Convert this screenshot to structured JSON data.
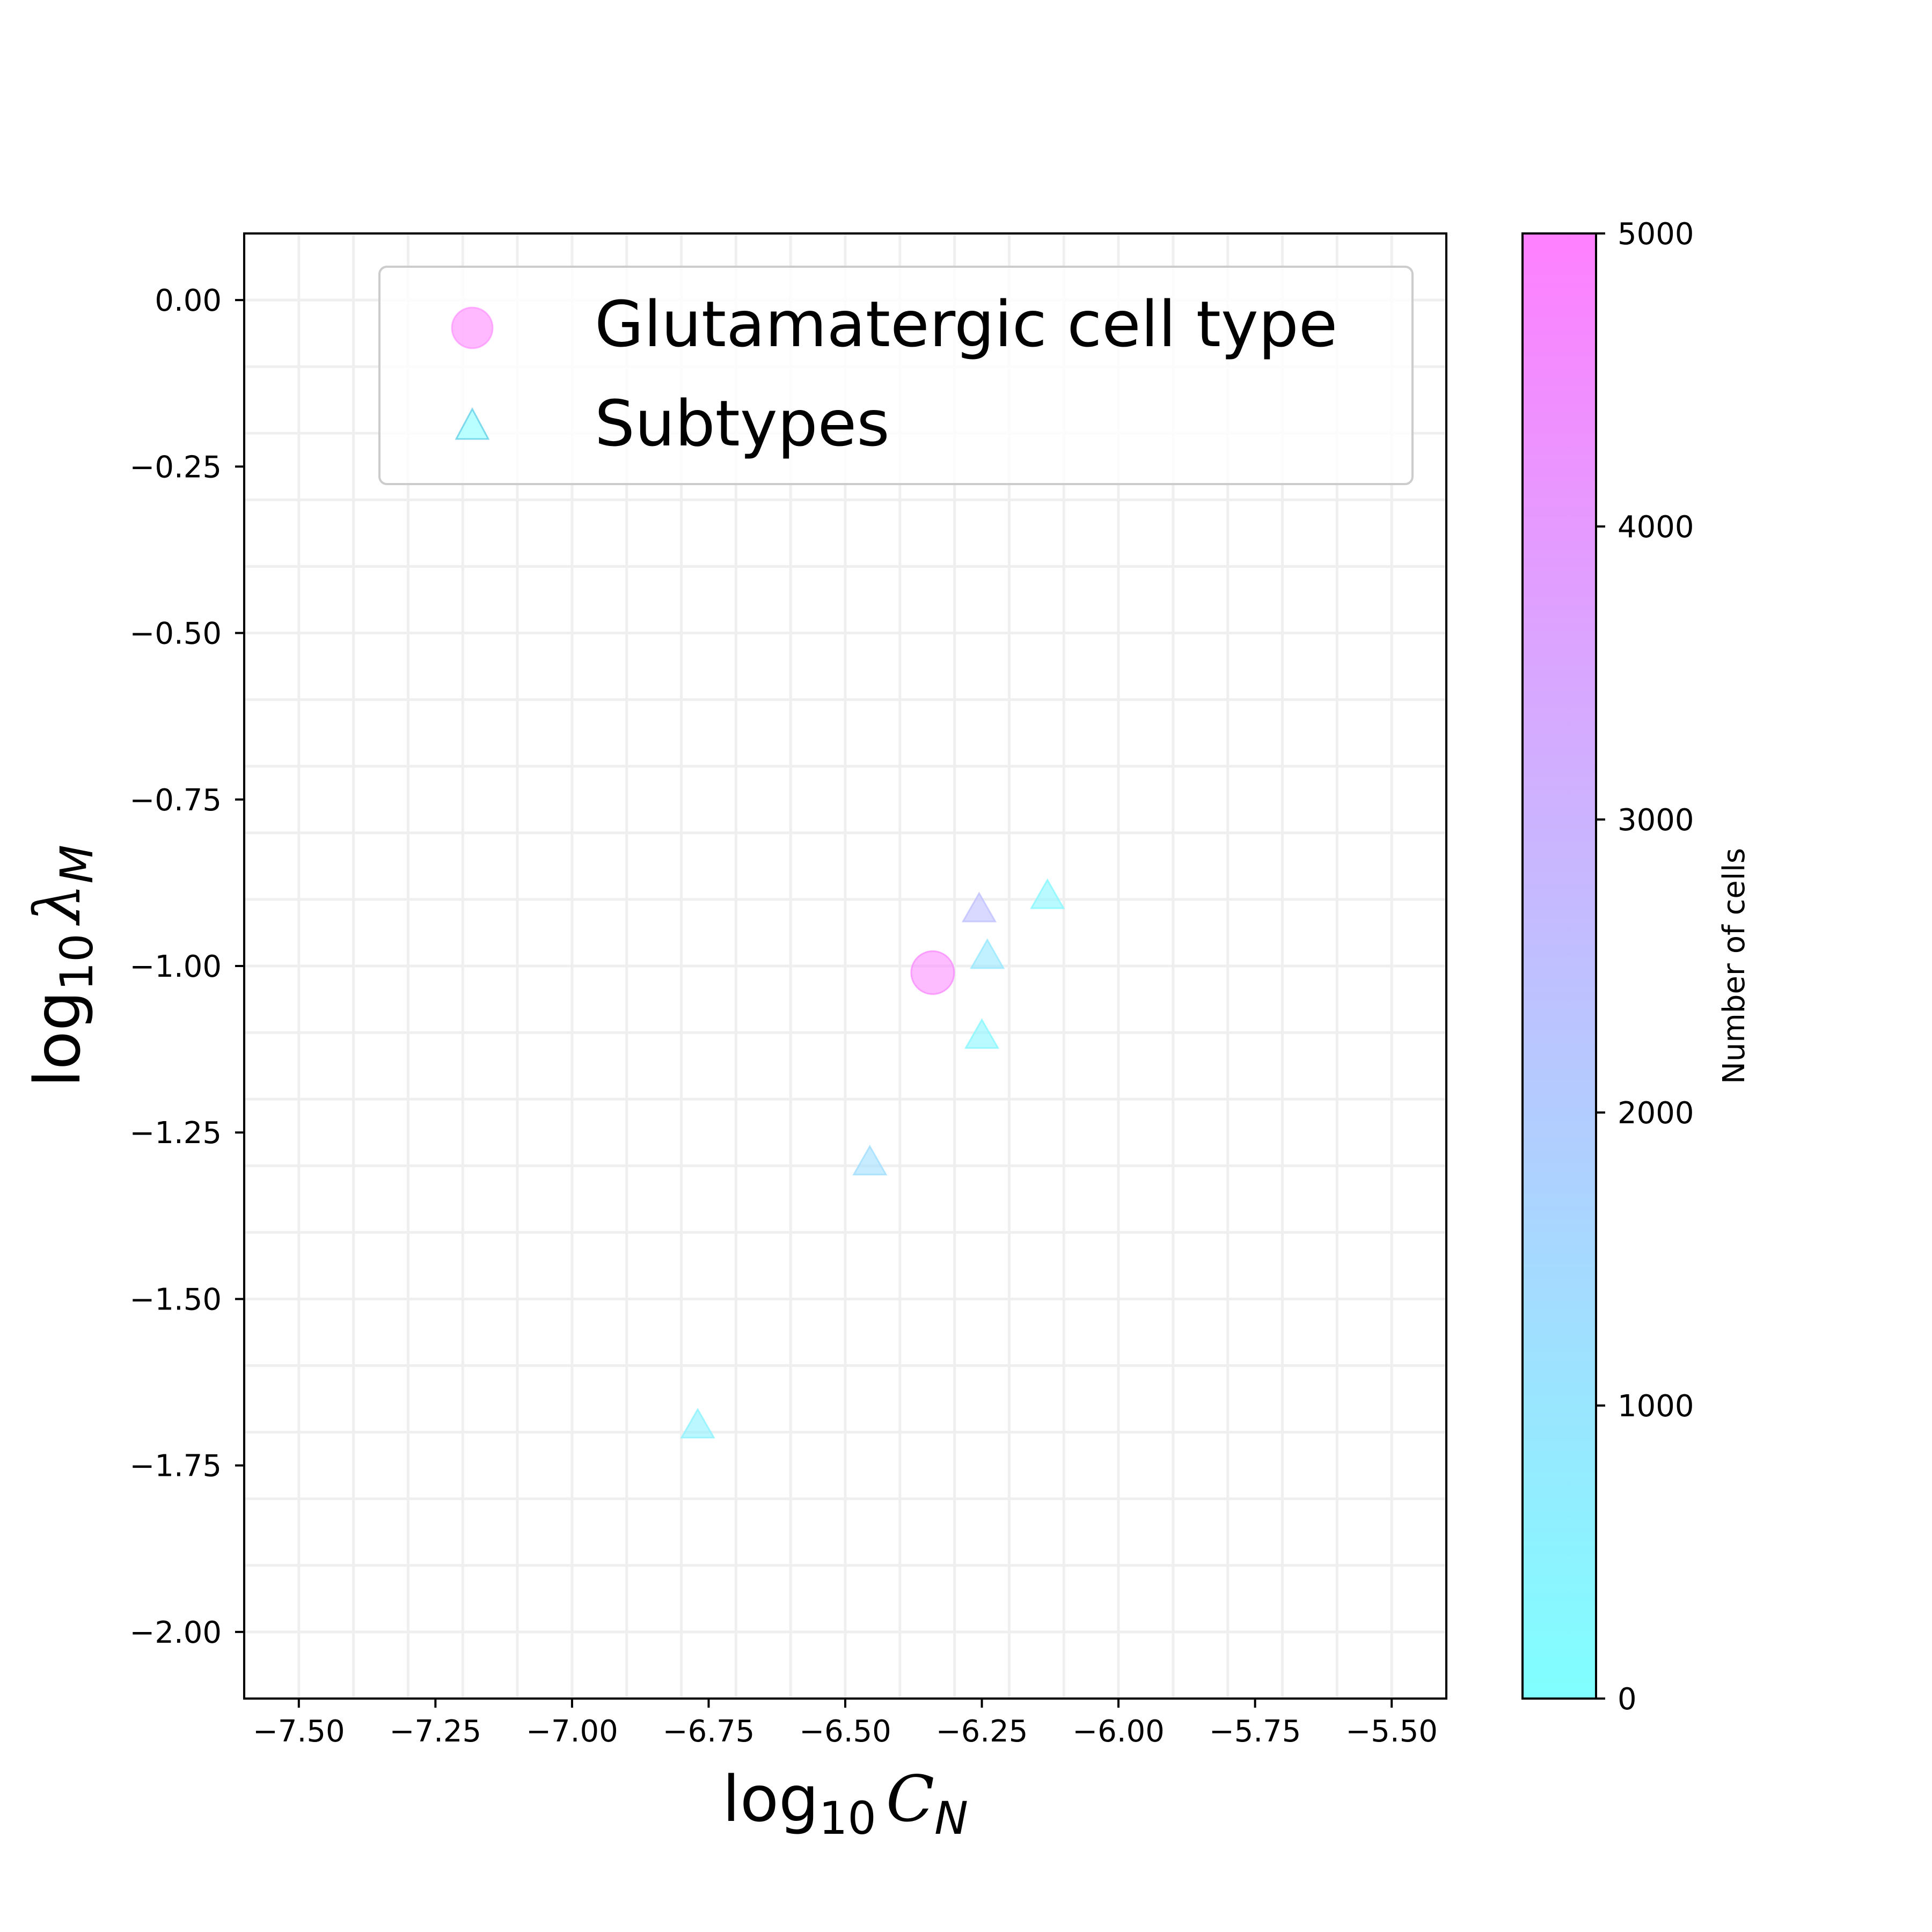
{
  "chart_data": {
    "type": "scatter",
    "xlabel": {
      "base": "log",
      "sub": "10",
      "var": "C",
      "var_sub": "N"
    },
    "ylabel": {
      "base": "log",
      "sub": "10",
      "var": "λ",
      "var_sub": "M"
    },
    "xlim": [
      -7.6,
      -5.4
    ],
    "ylim": [
      -2.1,
      0.1
    ],
    "xticks": [
      -7.5,
      -7.25,
      -7.0,
      -6.75,
      -6.5,
      -6.25,
      -6.0,
      -5.75,
      -5.5
    ],
    "xtick_labels": [
      "−7.50",
      "−7.25",
      "−7.00",
      "−6.75",
      "−6.50",
      "−6.25",
      "−6.00",
      "−5.75",
      "−5.50"
    ],
    "yticks": [
      0.0,
      -0.25,
      -0.5,
      -0.75,
      -1.0,
      -1.25,
      -1.5,
      -1.75,
      -2.0
    ],
    "ytick_labels": [
      "0.00",
      "−0.25",
      "−0.50",
      "−0.75",
      "−1.00",
      "−1.25",
      "−1.50",
      "−1.75",
      "−2.00"
    ],
    "grid": true,
    "legend_position": "top-right",
    "series": [
      {
        "name": "Glutamatergic cell type",
        "marker": "circle",
        "points": [
          {
            "x": -6.34,
            "y": -1.01,
            "cells": 4800
          }
        ]
      },
      {
        "name": "Subtypes",
        "marker": "triangle",
        "points": [
          {
            "x": -6.255,
            "y": -0.915,
            "cells": 2500
          },
          {
            "x": -6.13,
            "y": -0.895,
            "cells": 300
          },
          {
            "x": -6.24,
            "y": -0.985,
            "cells": 900
          },
          {
            "x": -6.25,
            "y": -1.105,
            "cells": 300
          },
          {
            "x": -6.455,
            "y": -1.295,
            "cells": 1300
          },
          {
            "x": -6.77,
            "y": -1.69,
            "cells": 500
          }
        ]
      }
    ],
    "colorbar": {
      "label": "Number of cells",
      "min": 0,
      "max": 5000,
      "ticks": [
        0,
        1000,
        2000,
        3000,
        4000,
        5000
      ],
      "tick_labels": [
        "0",
        "1000",
        "2000",
        "3000",
        "4000",
        "5000"
      ],
      "color_min": "#80ffff",
      "color_max": "#ff80ff"
    }
  }
}
